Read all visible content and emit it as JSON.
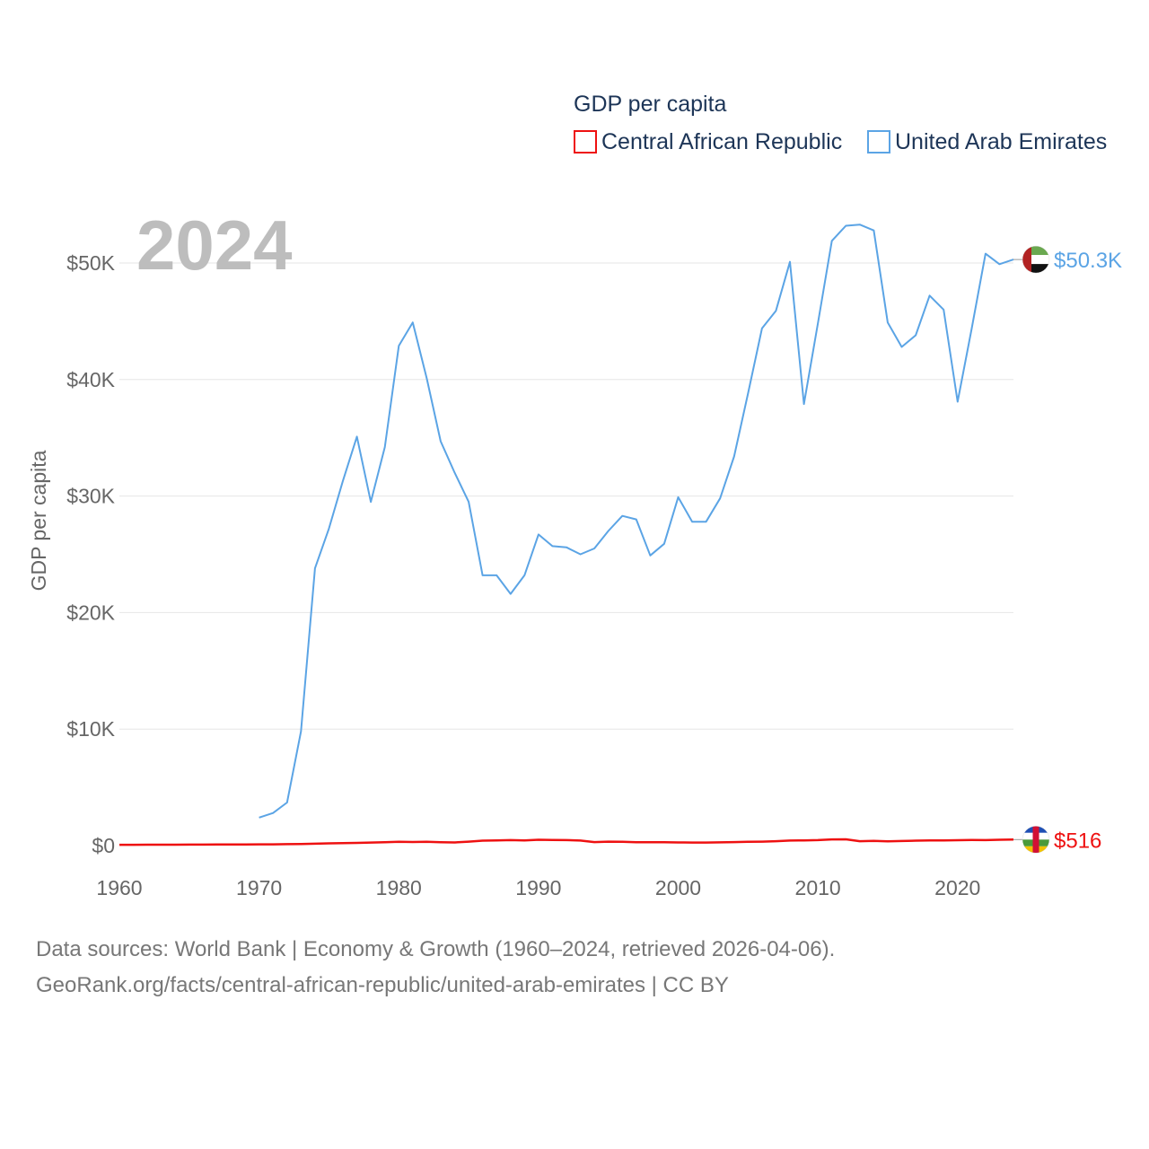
{
  "chart_data": {
    "type": "line",
    "title": "GDP per capita",
    "ylabel": "GDP per capita",
    "xlabel": "",
    "year_label": "2024",
    "xlim": [
      1960,
      2024
    ],
    "ylim": [
      0,
      55000
    ],
    "x_ticks": [
      1960,
      1970,
      1980,
      1990,
      2000,
      2010,
      2020
    ],
    "x_tick_labels": [
      "1960",
      "1970",
      "1980",
      "1990",
      "2000",
      "2010",
      "2020"
    ],
    "y_ticks": [
      0,
      10000,
      20000,
      30000,
      40000,
      50000
    ],
    "y_tick_labels": [
      "$0",
      "$10K",
      "$20K",
      "$30K",
      "$40K",
      "$50K"
    ],
    "grid": true,
    "legend_position": "top-right",
    "series": [
      {
        "name": "Central African Republic",
        "color": "#ee1111",
        "end_label": "$516",
        "flag_icon": "central-african-republic-flag-icon",
        "x": [
          1960,
          1961,
          1962,
          1963,
          1964,
          1965,
          1966,
          1967,
          1968,
          1969,
          1970,
          1971,
          1972,
          1973,
          1974,
          1975,
          1976,
          1977,
          1978,
          1979,
          1980,
          1981,
          1982,
          1983,
          1984,
          1985,
          1986,
          1987,
          1988,
          1989,
          1990,
          1991,
          1992,
          1993,
          1994,
          1995,
          1996,
          1997,
          1998,
          1999,
          2000,
          2001,
          2002,
          2003,
          2004,
          2005,
          2006,
          2007,
          2008,
          2009,
          2010,
          2011,
          2012,
          2013,
          2014,
          2015,
          2016,
          2017,
          2018,
          2019,
          2020,
          2021,
          2022,
          2023,
          2024
        ],
        "values": [
          70,
          72,
          75,
          78,
          80,
          85,
          88,
          90,
          95,
          100,
          105,
          110,
          120,
          140,
          160,
          190,
          210,
          230,
          260,
          290,
          330,
          310,
          320,
          290,
          270,
          340,
          420,
          450,
          470,
          450,
          500,
          480,
          470,
          430,
          300,
          340,
          320,
          290,
          290,
          290,
          270,
          260,
          260,
          280,
          300,
          320,
          340,
          380,
          430,
          450,
          470,
          530,
          540,
          380,
          400,
          370,
          390,
          420,
          450,
          440,
          460,
          480,
          470,
          500,
          516
        ]
      },
      {
        "name": "United Arab Emirates",
        "color": "#5ba4e5",
        "end_label": "$50.3K",
        "flag_icon": "united-arab-emirates-flag-icon",
        "x": [
          1970,
          1971,
          1972,
          1973,
          1974,
          1975,
          1976,
          1977,
          1978,
          1979,
          1980,
          1981,
          1982,
          1983,
          1984,
          1985,
          1986,
          1987,
          1988,
          1989,
          1990,
          1991,
          1992,
          1993,
          1994,
          1995,
          1996,
          1997,
          1998,
          1999,
          2000,
          2001,
          2002,
          2003,
          2004,
          2005,
          2006,
          2007,
          2008,
          2009,
          2010,
          2011,
          2012,
          2013,
          2014,
          2015,
          2016,
          2017,
          2018,
          2019,
          2020,
          2021,
          2022,
          2023,
          2024
        ],
        "values": [
          2400,
          2800,
          3700,
          9800,
          23800,
          27200,
          31300,
          35100,
          29500,
          34200,
          42900,
          44900,
          40100,
          34700,
          32000,
          29500,
          23200,
          23200,
          21600,
          23200,
          26700,
          25700,
          25600,
          25000,
          25500,
          27000,
          28300,
          28000,
          24900,
          25900,
          29900,
          27800,
          27800,
          29800,
          33400,
          38800,
          44400,
          45900,
          50100,
          37900,
          44800,
          51900,
          53200,
          53300,
          52800,
          44900,
          42800,
          43800,
          47200,
          46000,
          38100,
          44300,
          50800,
          49900,
          50300
        ]
      }
    ]
  },
  "footer": {
    "line1": "Data sources: World Bank | Economy & Growth (1960–2024, retrieved 2026-04-06).",
    "line2": "GeoRank.org/facts/central-african-republic/united-arab-emirates | CC BY"
  }
}
